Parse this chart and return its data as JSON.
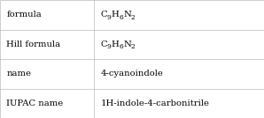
{
  "rows": [
    {
      "label": "formula",
      "value_parts": [
        [
          "C",
          "9"
        ],
        [
          "H",
          "6"
        ],
        [
          "N",
          "2"
        ]
      ],
      "value_plain": null
    },
    {
      "label": "Hill formula",
      "value_parts": [
        [
          "C",
          "9"
        ],
        [
          "H",
          "6"
        ],
        [
          "N",
          "2"
        ]
      ],
      "value_plain": null
    },
    {
      "label": "name",
      "value_parts": null,
      "value_plain": "4-cyanoindole"
    },
    {
      "label": "IUPAC name",
      "value_parts": null,
      "value_plain": "1H-indole-4-carbonitrile"
    }
  ],
  "col_split": 0.355,
  "background_color": "#ffffff",
  "border_color": "#bbbbbb",
  "text_color": "#000000",
  "label_fontsize": 7.2,
  "value_fontsize": 7.2,
  "fig_width": 2.98,
  "fig_height": 1.34,
  "dpi": 100
}
